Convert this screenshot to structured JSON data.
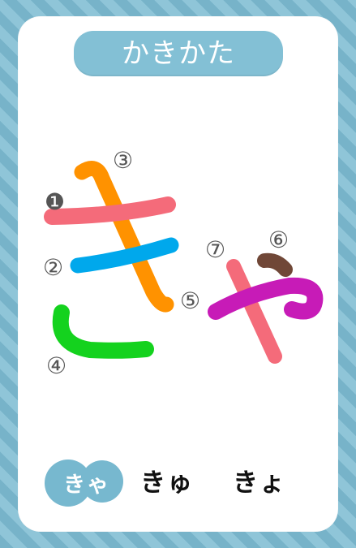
{
  "page": {
    "title": "かきかた"
  },
  "strokes": [
    {
      "number": "❶",
      "color": "#f46b7a"
    },
    {
      "number": "②",
      "color": "#00a8ec"
    },
    {
      "number": "③",
      "color": "#ff9200"
    },
    {
      "number": "④",
      "color": "#14d21e"
    },
    {
      "number": "⑤",
      "color": "#c71bb7"
    },
    {
      "number": "⑥",
      "color": "#704737"
    },
    {
      "number": "⑦",
      "color": "#f46b7a"
    }
  ],
  "footer": {
    "items": [
      {
        "label": "きゃ",
        "selected": true
      },
      {
        "label": "きゅ",
        "selected": false
      },
      {
        "label": "きょ",
        "selected": false
      }
    ]
  },
  "colors": {
    "border_primary": "#77b3c9",
    "border_secondary": "#8fc5d8",
    "title_background": "#83c0d5",
    "badge_background": "#77b8cf"
  }
}
